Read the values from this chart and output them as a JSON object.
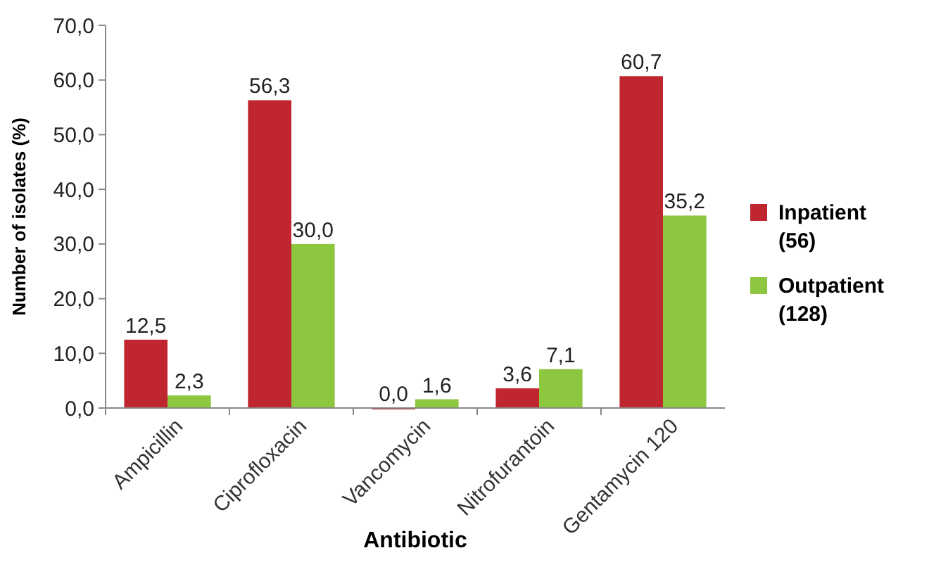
{
  "chart_data": {
    "type": "bar",
    "xlabel": "Antibiotic",
    "ylabel": "Number of isolates (%)",
    "categories": [
      "Ampicillin",
      "Ciprofloxacin",
      "Vancomycin",
      "Nitrofurantoin",
      "Gentamycin 120"
    ],
    "series": [
      {
        "name": "Inpatient (56)",
        "color": "#c0262f",
        "values": [
          12.5,
          56.3,
          0.0,
          3.6,
          60.7
        ],
        "value_labels": [
          "12,5",
          "56,3",
          "0,0",
          "3,6",
          "60,7"
        ]
      },
      {
        "name": "Outpatient (128)",
        "color": "#8dc63f",
        "values": [
          2.3,
          30.0,
          1.6,
          7.1,
          35.2
        ],
        "value_labels": [
          "2,3",
          "30,0",
          "1,6",
          "7,1",
          "35,2"
        ]
      }
    ],
    "ylim": [
      0,
      70
    ],
    "yticks": [
      {
        "value": 0,
        "label": "0,0"
      },
      {
        "value": 10,
        "label": "10,0"
      },
      {
        "value": 20,
        "label": "20,0"
      },
      {
        "value": 30,
        "label": "30,0"
      },
      {
        "value": 40,
        "label": "40,0"
      },
      {
        "value": 50,
        "label": "50,0"
      },
      {
        "value": 60,
        "label": "60,0"
      },
      {
        "value": 70,
        "label": "70,0"
      }
    ],
    "legend": "right",
    "grid": false
  }
}
